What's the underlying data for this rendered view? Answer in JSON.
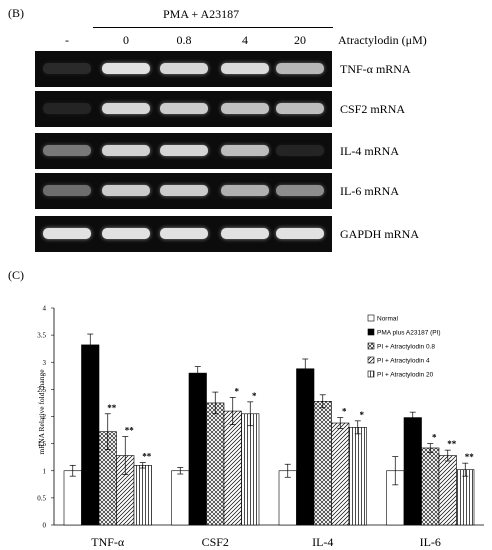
{
  "panel_b": {
    "letter": "(B)",
    "treatment_header": "PMA + A23187",
    "concentration_label": "Atractylodin (μM)",
    "lanes": [
      "-",
      "0",
      "0.8",
      "4",
      "20"
    ],
    "rows": [
      {
        "label": "TNF-α mRNA",
        "intensity": [
          0.08,
          0.95,
          0.9,
          0.92,
          0.75
        ]
      },
      {
        "label": "CSF2 mRNA",
        "intensity": [
          0.05,
          0.9,
          0.85,
          0.8,
          0.78
        ]
      },
      {
        "label": "IL-4 mRNA",
        "intensity": [
          0.45,
          0.88,
          0.9,
          0.78,
          0.05
        ]
      },
      {
        "label": "IL-6 mRNA",
        "intensity": [
          0.4,
          0.85,
          0.85,
          0.72,
          0.55
        ]
      },
      {
        "label": "GAPDH mRNA",
        "intensity": [
          0.95,
          0.95,
          0.95,
          0.95,
          0.95
        ]
      }
    ]
  },
  "panel_c": {
    "letter": "(C)",
    "chart_data": {
      "type": "bar",
      "ylabel": "mRNA Relative fold change",
      "ylim": [
        0,
        4
      ],
      "yticks": [
        "0",
        "0.5",
        "1",
        "1.5",
        "2",
        "2.5",
        "3",
        "3.5",
        "4"
      ],
      "categories": [
        "TNF-α",
        "CSF2",
        "IL-4",
        "IL-6"
      ],
      "series": [
        {
          "name": "Normal",
          "values": [
            1.0,
            1.0,
            1.0,
            1.0
          ],
          "errors": [
            0.1,
            0.06,
            0.12,
            0.26
          ],
          "sig": [
            "",
            "",
            "",
            ""
          ],
          "fill": "white"
        },
        {
          "name": "PMA plus A23187 (PI)",
          "values": [
            3.32,
            2.8,
            2.88,
            1.98
          ],
          "errors": [
            0.2,
            0.12,
            0.18,
            0.1
          ],
          "sig": [
            "",
            "",
            "",
            ""
          ],
          "fill": "black"
        },
        {
          "name": "PI + Atractylodin 0.8",
          "values": [
            1.72,
            2.25,
            2.28,
            1.42
          ],
          "errors": [
            0.33,
            0.2,
            0.12,
            0.08
          ],
          "sig": [
            "**",
            "",
            "",
            "*"
          ],
          "fill": "crosshatch"
        },
        {
          "name": "PI + Atractylodin 4",
          "values": [
            1.28,
            2.1,
            1.88,
            1.28
          ],
          "errors": [
            0.35,
            0.25,
            0.1,
            0.1
          ],
          "sig": [
            "**",
            "*",
            "*",
            "**"
          ],
          "fill": "diagonal"
        },
        {
          "name": "PI + Atractylodin 20",
          "values": [
            1.1,
            2.05,
            1.8,
            1.02
          ],
          "errors": [
            0.05,
            0.22,
            0.12,
            0.12
          ],
          "sig": [
            "**",
            "*",
            "*",
            "**"
          ],
          "fill": "vertical"
        }
      ],
      "legend_position": "top-right",
      "grid": false
    }
  }
}
